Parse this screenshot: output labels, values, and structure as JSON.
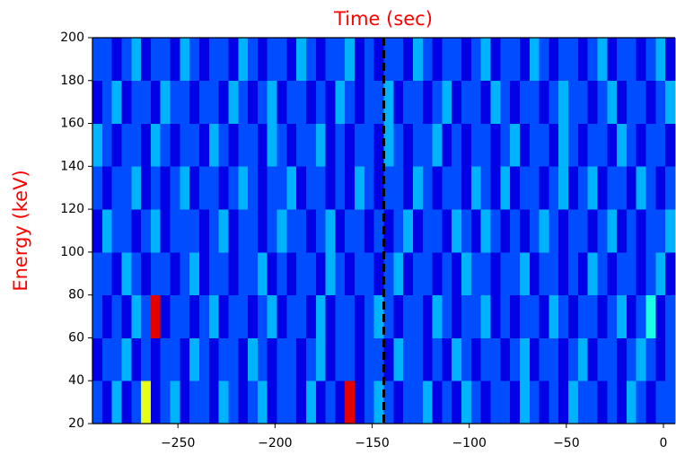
{
  "chart_data": {
    "type": "heatmap",
    "title": "Time (sec)",
    "y_label": "Energy (keV)",
    "label_color": "#ff0000",
    "x_edges": [
      -294,
      -289,
      -284,
      -279,
      -274,
      -269,
      -264,
      -259,
      -254,
      -249,
      -244,
      -239,
      -234,
      -229,
      -224,
      -219,
      -214,
      -209,
      -204,
      -199,
      -194,
      -189,
      -184,
      -179,
      -174,
      -169,
      -164,
      -159,
      -154,
      -149,
      -144,
      -139,
      -134,
      -129,
      -124,
      -119,
      -114,
      -109,
      -104,
      -99,
      -94,
      -89,
      -84,
      -79,
      -74,
      -69,
      -64,
      -59,
      -54,
      -49,
      -44,
      -39,
      -34,
      -29,
      -24,
      -19,
      -14,
      -9,
      -4,
      1,
      6
    ],
    "y_edges": [
      20,
      40,
      60,
      80,
      100,
      120,
      140,
      160,
      180,
      200
    ],
    "z": [
      [
        2,
        1,
        3,
        1,
        2,
        6,
        1,
        2,
        3,
        1,
        2,
        2,
        1,
        3,
        2,
        1,
        2,
        3,
        1,
        2,
        2,
        1,
        3,
        1,
        2,
        1,
        9,
        1,
        2,
        3,
        2,
        1,
        2,
        2,
        3,
        1,
        2,
        1,
        3,
        2,
        1,
        2,
        2,
        1,
        3,
        2,
        1,
        2,
        1,
        3,
        2,
        2,
        1,
        2,
        1,
        3,
        2,
        1,
        2,
        2
      ],
      [
        1,
        2,
        2,
        3,
        1,
        2,
        1,
        2,
        2,
        1,
        3,
        2,
        1,
        2,
        2,
        1,
        3,
        2,
        1,
        2,
        2,
        1,
        2,
        3,
        1,
        2,
        2,
        1,
        2,
        2,
        1,
        3,
        2,
        2,
        1,
        2,
        1,
        3,
        2,
        1,
        2,
        2,
        1,
        2,
        3,
        1,
        2,
        2,
        1,
        2,
        3,
        1,
        2,
        2,
        1,
        2,
        3,
        2,
        1,
        2
      ],
      [
        2,
        1,
        2,
        1,
        3,
        2,
        9,
        1,
        2,
        2,
        1,
        2,
        3,
        1,
        2,
        2,
        1,
        2,
        3,
        1,
        2,
        2,
        1,
        3,
        1,
        2,
        2,
        1,
        2,
        3,
        2,
        1,
        2,
        2,
        1,
        3,
        2,
        1,
        2,
        2,
        3,
        1,
        2,
        1,
        2,
        2,
        1,
        3,
        2,
        1,
        2,
        2,
        1,
        2,
        3,
        1,
        2,
        4,
        1,
        2
      ],
      [
        2,
        2,
        1,
        3,
        2,
        1,
        2,
        2,
        1,
        2,
        3,
        1,
        2,
        2,
        1,
        2,
        2,
        3,
        1,
        2,
        1,
        2,
        2,
        1,
        3,
        2,
        1,
        2,
        2,
        1,
        2,
        3,
        1,
        2,
        2,
        1,
        2,
        1,
        3,
        2,
        2,
        1,
        2,
        2,
        3,
        1,
        2,
        2,
        1,
        2,
        1,
        3,
        2,
        1,
        2,
        2,
        1,
        2,
        3,
        1
      ],
      [
        1,
        3,
        2,
        2,
        1,
        2,
        3,
        1,
        2,
        2,
        2,
        1,
        2,
        3,
        1,
        2,
        2,
        1,
        2,
        3,
        2,
        2,
        1,
        2,
        3,
        1,
        2,
        2,
        1,
        2,
        1,
        2,
        3,
        1,
        2,
        2,
        1,
        3,
        2,
        1,
        3,
        2,
        1,
        2,
        1,
        2,
        3,
        2,
        1,
        2,
        2,
        1,
        2,
        3,
        1,
        2,
        1,
        2,
        2,
        3
      ],
      [
        2,
        1,
        2,
        2,
        3,
        1,
        2,
        1,
        2,
        3,
        1,
        2,
        2,
        1,
        2,
        3,
        2,
        1,
        2,
        2,
        3,
        1,
        2,
        2,
        1,
        2,
        1,
        3,
        2,
        1,
        2,
        2,
        1,
        3,
        2,
        1,
        2,
        2,
        1,
        3,
        2,
        1,
        3,
        1,
        2,
        2,
        1,
        2,
        3,
        1,
        2,
        3,
        1,
        2,
        2,
        1,
        3,
        2,
        1,
        2
      ],
      [
        3,
        2,
        1,
        2,
        2,
        1,
        3,
        2,
        1,
        2,
        2,
        1,
        3,
        2,
        1,
        2,
        2,
        1,
        3,
        2,
        1,
        2,
        2,
        3,
        1,
        2,
        1,
        2,
        2,
        1,
        3,
        2,
        1,
        2,
        2,
        3,
        1,
        2,
        1,
        2,
        2,
        1,
        2,
        3,
        1,
        2,
        2,
        1,
        3,
        2,
        1,
        2,
        2,
        1,
        3,
        2,
        1,
        2,
        2,
        1
      ],
      [
        1,
        2,
        3,
        1,
        2,
        2,
        1,
        3,
        2,
        2,
        1,
        2,
        2,
        1,
        3,
        2,
        1,
        2,
        3,
        1,
        2,
        2,
        1,
        2,
        1,
        3,
        2,
        1,
        2,
        2,
        3,
        1,
        2,
        2,
        1,
        2,
        3,
        1,
        2,
        2,
        1,
        3,
        2,
        1,
        2,
        2,
        1,
        2,
        3,
        2,
        2,
        1,
        2,
        3,
        1,
        2,
        2,
        1,
        2,
        3
      ],
      [
        2,
        2,
        1,
        2,
        3,
        1,
        2,
        2,
        1,
        3,
        2,
        1,
        2,
        2,
        1,
        3,
        2,
        1,
        2,
        2,
        1,
        3,
        2,
        1,
        2,
        2,
        3,
        1,
        2,
        1,
        2,
        2,
        1,
        3,
        2,
        1,
        2,
        2,
        1,
        2,
        3,
        1,
        2,
        2,
        1,
        3,
        2,
        1,
        2,
        2,
        1,
        2,
        3,
        1,
        2,
        2,
        1,
        2,
        3,
        1
      ]
    ],
    "colormap": "jet",
    "clim": [
      0,
      10
    ],
    "vline": -144,
    "vline_color": "#000000",
    "xlim": [
      -294,
      6
    ],
    "ylim": [
      20,
      200
    ],
    "xticks": [
      {
        "value": -250,
        "label": "−250"
      },
      {
        "value": -200,
        "label": "−200"
      },
      {
        "value": -150,
        "label": "−150"
      },
      {
        "value": -100,
        "label": "−100"
      },
      {
        "value": -50,
        "label": "−50"
      },
      0
    ],
    "yticks": [
      20,
      40,
      60,
      80,
      100,
      120,
      140,
      160,
      180,
      200
    ]
  }
}
